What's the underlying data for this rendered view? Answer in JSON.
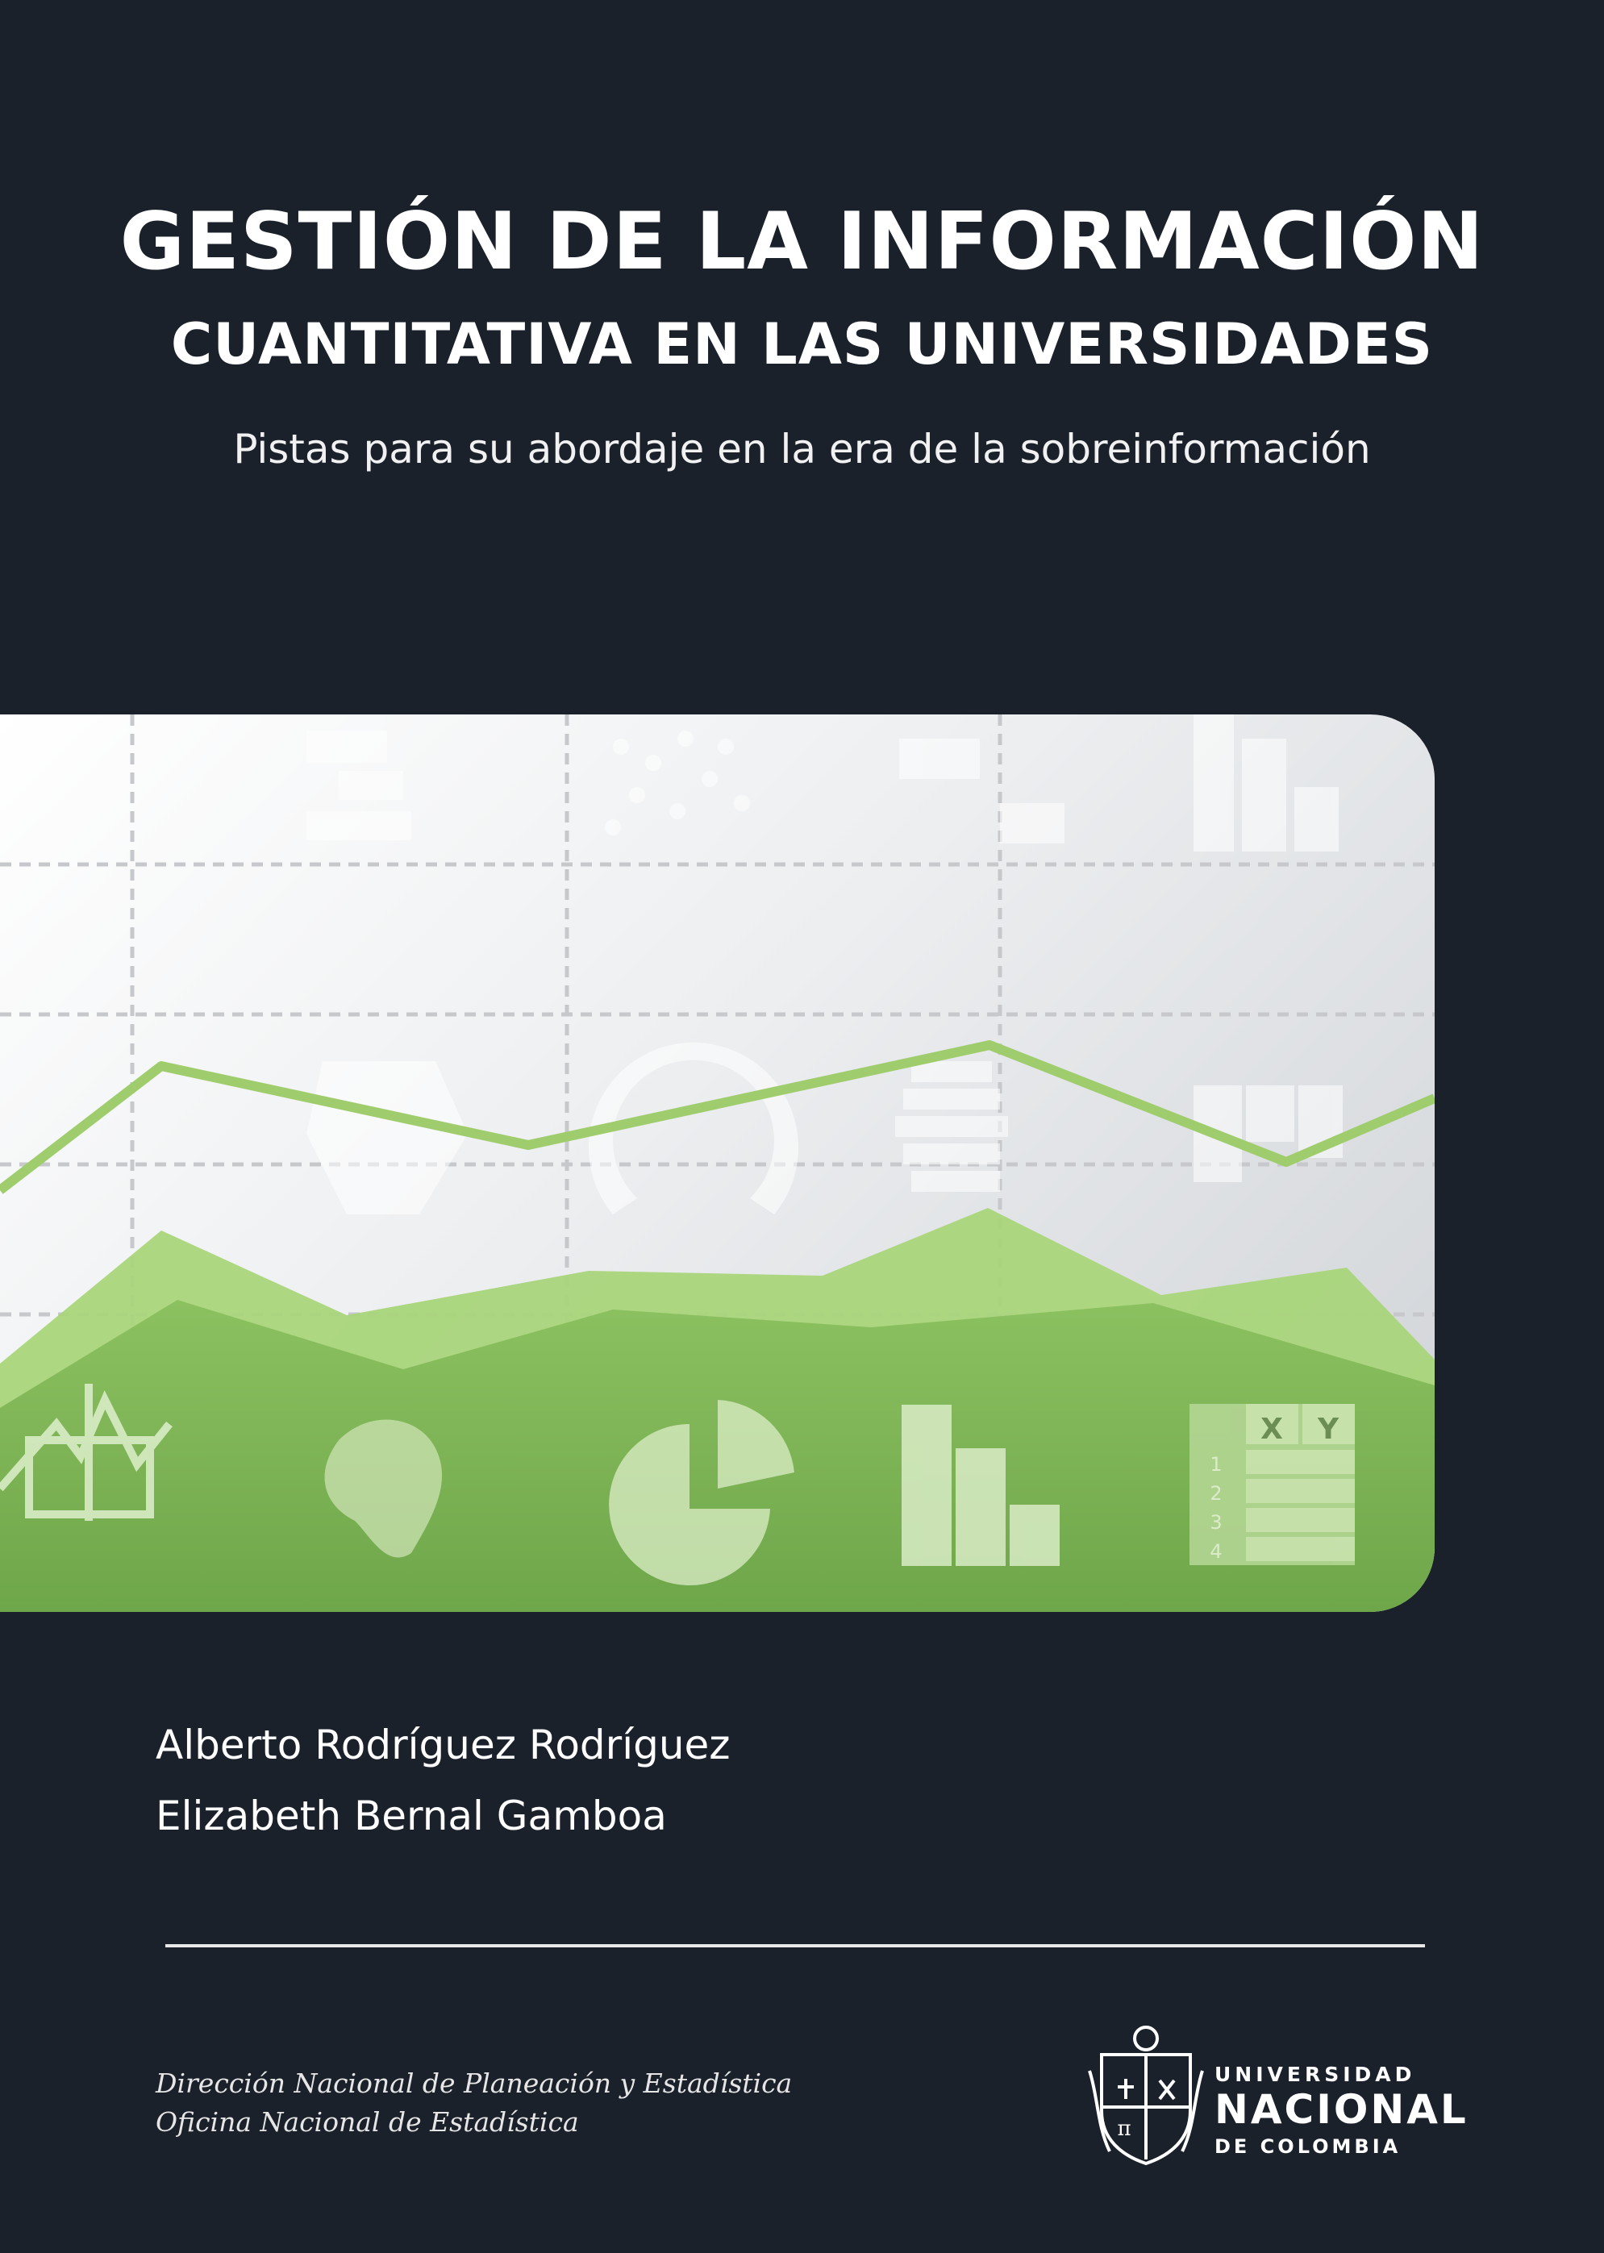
{
  "cover": {
    "title_line_1": "GESTIÓN DE LA INFORMACIÓN",
    "title_line_2": "CUANTITATIVA EN LAS UNIVERSIDADES",
    "subtitle": "Pistas para su abordaje en la era de la sobreinformación"
  },
  "banner": {
    "table_header_x": "X",
    "table_header_y": "Y",
    "table_rows": [
      "1",
      "2",
      "3",
      "4"
    ]
  },
  "authors": [
    "Alberto Rodríguez Rodríguez",
    "Elizabeth Bernal Gamboa"
  ],
  "organization": {
    "line_1": "Dirección Nacional de Planeación y Estadística",
    "line_2": "Oficina Nacional de Estadística"
  },
  "publisher": {
    "line_1": "UNIVERSIDAD",
    "line_2": "NACIONAL",
    "line_3": "DE COLOMBIA"
  },
  "colors": {
    "background": "#1b212a",
    "green_light": "#a9d57a",
    "green_dark": "#6fa84a"
  }
}
